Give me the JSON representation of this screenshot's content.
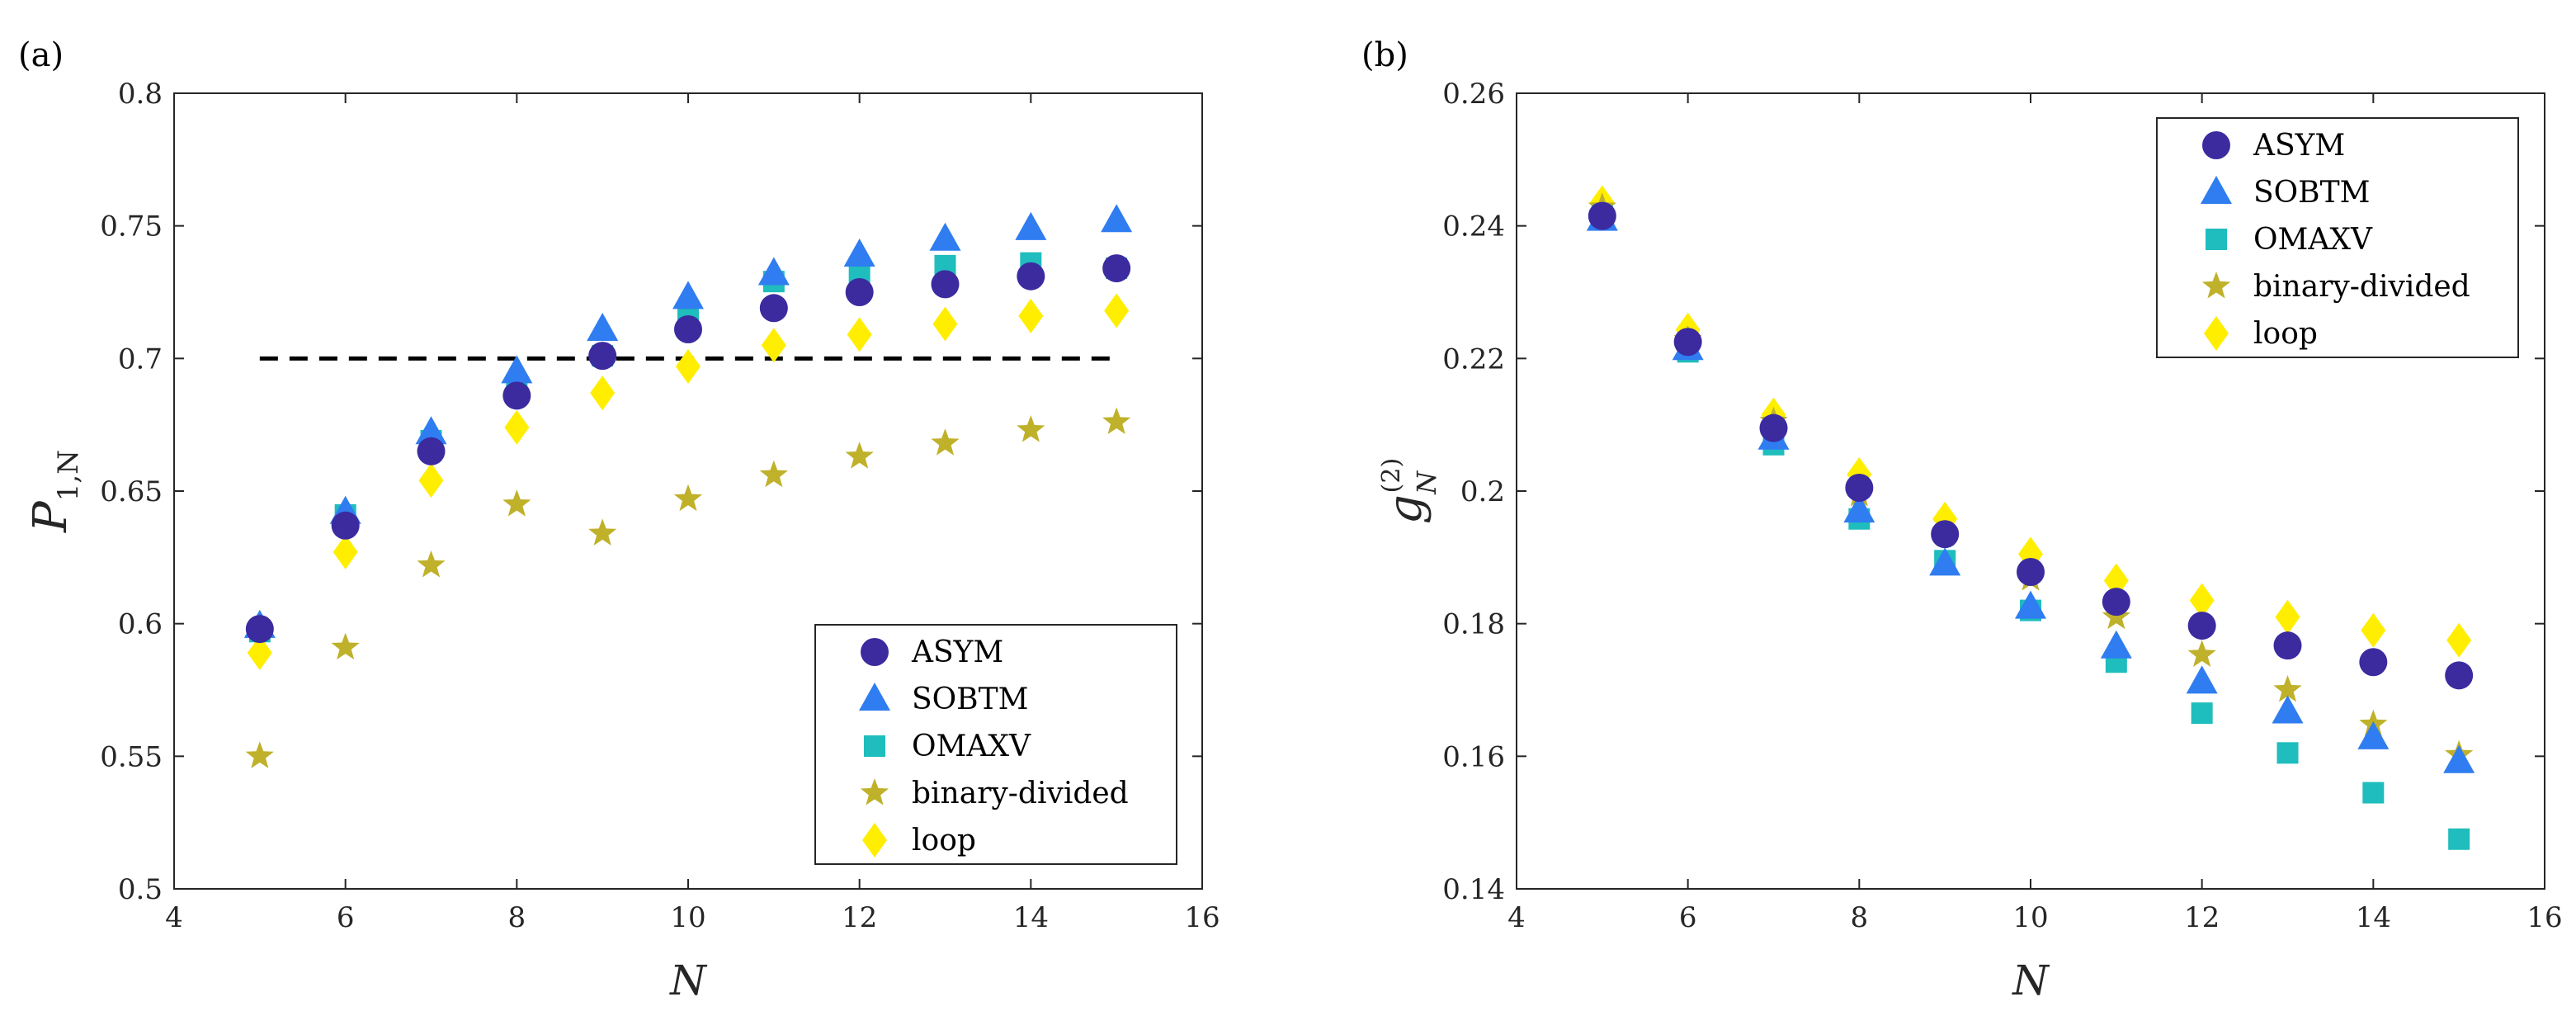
{
  "colors": {
    "asym": "#3b2b9f",
    "sobtm": "#2f7df0",
    "omaxv": "#1fbdbd",
    "binary": "#bfb12a",
    "loop": "#ffee00",
    "threshold": "#000000"
  },
  "chart_data": [
    {
      "type": "scatter",
      "panel_label": "(a)",
      "xlabel": "N",
      "ylabel_main": "P",
      "ylabel_sub": "1,N",
      "xlim": [
        4,
        16
      ],
      "ylim": [
        0.5,
        0.8
      ],
      "xticks": [
        4,
        6,
        8,
        10,
        12,
        14,
        16
      ],
      "xtick_labels": [
        "4",
        "6",
        "8",
        "10",
        "12",
        "14",
        "16"
      ],
      "yticks": [
        0.5,
        0.55,
        0.6,
        0.65,
        0.7,
        0.75,
        0.8
      ],
      "ytick_labels": [
        "0.5",
        "0.55",
        "0.6",
        "0.65",
        "0.7",
        "0.75",
        "0.8"
      ],
      "legend_position": "bottom-right",
      "threshold": {
        "y": 0.7,
        "x_range": [
          5,
          15
        ],
        "style": "dashed"
      },
      "x": [
        5,
        6,
        7,
        8,
        9,
        10,
        11,
        12,
        13,
        14,
        15
      ],
      "series": [
        {
          "name": "ASYM",
          "marker": "circle",
          "color_key": "asym",
          "values": [
            0.598,
            0.637,
            0.665,
            0.686,
            0.701,
            0.711,
            0.719,
            0.725,
            0.728,
            0.731,
            0.734
          ]
        },
        {
          "name": "SOBTM",
          "marker": "triangle",
          "color_key": "sobtm",
          "values": [
            0.599,
            0.642,
            0.672,
            0.695,
            0.711,
            0.723,
            0.732,
            0.739,
            0.745,
            0.749,
            0.752
          ]
        },
        {
          "name": "OMAXV",
          "marker": "square",
          "color_key": "omaxv",
          "values": [
            0.597,
            0.641,
            0.669,
            0.688,
            0.701,
            0.718,
            0.729,
            0.732,
            0.735,
            0.736,
            0.734
          ]
        },
        {
          "name": "binary-divided",
          "marker": "star",
          "color_key": "binary",
          "values": [
            0.55,
            0.591,
            0.622,
            0.645,
            0.634,
            0.647,
            0.656,
            0.663,
            0.668,
            0.673,
            0.676
          ]
        },
        {
          "name": "loop",
          "marker": "diamond",
          "color_key": "loop",
          "values": [
            0.589,
            0.627,
            0.654,
            0.674,
            0.687,
            0.697,
            0.705,
            0.709,
            0.713,
            0.716,
            0.718
          ]
        }
      ]
    },
    {
      "type": "scatter",
      "panel_label": "(b)",
      "xlabel": "N",
      "ylabel_main": "g",
      "ylabel_sub": "N",
      "ylabel_sup": "(2)",
      "xlim": [
        4,
        16
      ],
      "ylim": [
        0.14,
        0.26
      ],
      "xticks": [
        4,
        6,
        8,
        10,
        12,
        14,
        16
      ],
      "xtick_labels": [
        "4",
        "6",
        "8",
        "10",
        "12",
        "14",
        "16"
      ],
      "yticks": [
        0.14,
        0.16,
        0.18,
        0.2,
        0.22,
        0.24,
        0.26
      ],
      "ytick_labels": [
        "0.14",
        "0.16",
        "0.18",
        "0.2",
        "0.22",
        "0.24",
        "0.26"
      ],
      "legend_position": "top-right",
      "x": [
        5,
        6,
        7,
        8,
        9,
        10,
        11,
        12,
        13,
        14,
        15
      ],
      "series": [
        {
          "name": "ASYM",
          "marker": "circle",
          "color_key": "asym",
          "values": [
            0.2415,
            0.2225,
            0.2095,
            0.2005,
            0.1935,
            0.1878,
            0.1833,
            0.1797,
            0.1767,
            0.1742,
            0.1722
          ]
        },
        {
          "name": "SOBTM",
          "marker": "triangle",
          "color_key": "sobtm",
          "values": [
            0.241,
            0.2215,
            0.208,
            0.197,
            0.189,
            0.1825,
            0.1765,
            0.1712,
            0.1667,
            0.1628,
            0.1592
          ]
        },
        {
          "name": "OMAXV",
          "marker": "square",
          "color_key": "omaxv",
          "values": [
            0.2415,
            0.221,
            0.207,
            0.1958,
            0.1895,
            0.182,
            0.1742,
            0.1665,
            0.1605,
            0.1545,
            0.1475
          ]
        },
        {
          "name": "binary-divided",
          "marker": "star",
          "color_key": "binary",
          "values": [
            0.2428,
            0.2228,
            0.2105,
            0.1995,
            0.1935,
            0.1868,
            0.181,
            0.1753,
            0.17,
            0.1648,
            0.1602
          ]
        },
        {
          "name": "loop",
          "marker": "diamond",
          "color_key": "loop",
          "values": [
            0.2435,
            0.2243,
            0.2115,
            0.2025,
            0.1958,
            0.1905,
            0.1865,
            0.1835,
            0.181,
            0.179,
            0.1775
          ]
        }
      ]
    }
  ]
}
